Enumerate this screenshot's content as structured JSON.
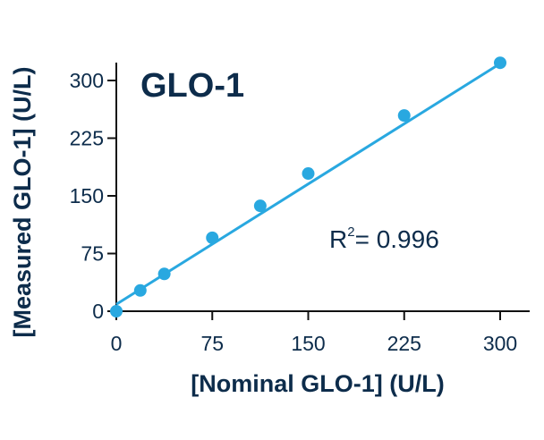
{
  "chart_data": {
    "type": "scatter",
    "title": "GLO-1",
    "xlabel": "[Nominal GLO-1] (U/L)",
    "ylabel": "[Measured GLO-1] (U/L)",
    "xlim": [
      0,
      300
    ],
    "ylim": [
      0,
      300
    ],
    "xticks": [
      0,
      75,
      150,
      225,
      300
    ],
    "yticks": [
      0,
      75,
      150,
      225,
      300
    ],
    "grid": false,
    "points": [
      {
        "x": 0,
        "y": 0
      },
      {
        "x": 18.75,
        "y": 27
      },
      {
        "x": 37.5,
        "y": 48.5
      },
      {
        "x": 75,
        "y": 95.5
      },
      {
        "x": 112.5,
        "y": 137
      },
      {
        "x": 150,
        "y": 179
      },
      {
        "x": 225,
        "y": 254.5
      },
      {
        "x": 300,
        "y": 323
      }
    ],
    "fit_line": {
      "slope": 1.043,
      "intercept": 9,
      "x_range": [
        0,
        300
      ]
    },
    "annotation": {
      "label": "R",
      "superscript": "2",
      "text": "= 0.996"
    },
    "colors": {
      "series": "#29a8e0",
      "text": "#0d2c4b",
      "axis": "#111111"
    }
  }
}
